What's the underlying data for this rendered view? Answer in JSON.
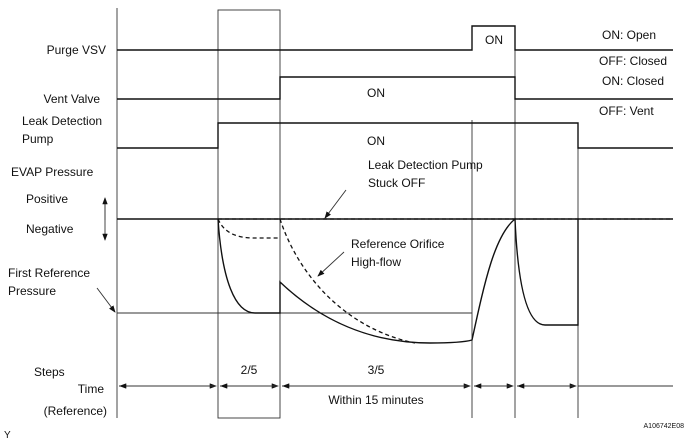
{
  "signals": {
    "purge_vsv": "Purge VSV",
    "vent_valve": "Vent Valve",
    "pump_line1": "Leak Detection",
    "pump_line2": "Pump",
    "evap_pressure": "EVAP Pressure",
    "positive": "Positive",
    "negative": "Negative",
    "first_ref_line1": "First Reference",
    "first_ref_line2": "Pressure"
  },
  "states": {
    "purge_on": "ON",
    "vent_on": "ON",
    "pump_on": "ON",
    "purge_on_meaning": "ON: Open",
    "purge_off_meaning": "OFF: Closed",
    "vent_on_meaning": "ON: Closed",
    "vent_off_meaning": "OFF: Vent"
  },
  "annotations": {
    "stuck_off_line1": "Leak Detection Pump",
    "stuck_off_line2": "Stuck OFF",
    "orifice_line1": "Reference Orifice",
    "orifice_line2": "High-flow"
  },
  "timeline": {
    "steps_label": "Steps",
    "time_label": "Time",
    "reference_label": "(Reference)",
    "step_2": "2/5",
    "step_3": "3/5",
    "within": "Within 15 minutes"
  },
  "footer": {
    "left_mark": "Y",
    "figure_id": "A106742E08"
  }
}
